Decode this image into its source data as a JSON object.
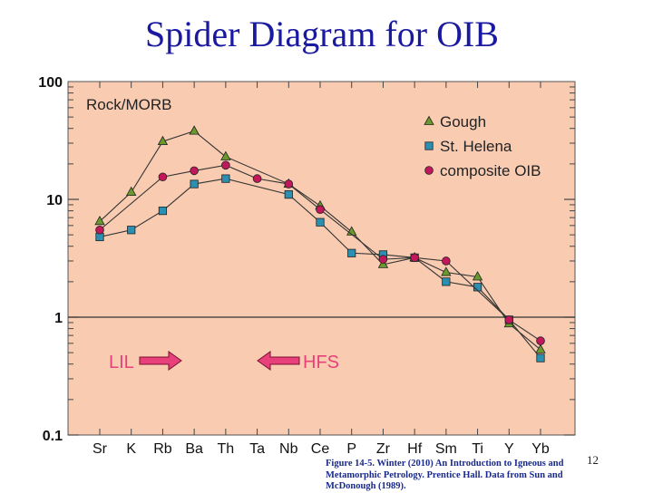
{
  "slide": {
    "title": "Spider Diagram for OIB",
    "caption": "Figure 14-5. Winter (2010) An Introduction to Igneous and Metamorphic Petrology. Prentice Hall. Data from Sun and McDonough (1989).",
    "page_number": "12"
  },
  "chart_data": {
    "type": "line",
    "title": "Rock/MORB",
    "yscale": "log",
    "ylim": [
      0.1,
      100
    ],
    "ytick_labels": [
      "100",
      "10",
      "1",
      "0.1"
    ],
    "categories": [
      "Sr",
      "K",
      "Rb",
      "Ba",
      "Th",
      "Ta",
      "Nb",
      "Ce",
      "P",
      "Zr",
      "Hf",
      "Sm",
      "Ti",
      "Y",
      "Yb"
    ],
    "series": [
      {
        "name": "Gough",
        "marker": "triangle",
        "color": "#6a9a2e",
        "values": [
          6.5,
          11.5,
          31,
          38,
          23,
          null,
          13.5,
          8.8,
          5.3,
          2.8,
          3.2,
          2.4,
          2.2,
          0.88,
          0.53
        ]
      },
      {
        "name": "St. Helena",
        "marker": "square",
        "color": "#2a8fb0",
        "values": [
          4.8,
          5.5,
          8.0,
          13.5,
          15,
          null,
          11,
          6.4,
          3.5,
          3.4,
          3.2,
          2.0,
          1.8,
          0.95,
          0.45
        ]
      },
      {
        "name": "composite OIB",
        "marker": "circle",
        "color": "#c2185b",
        "values": [
          5.5,
          null,
          15.5,
          17.5,
          19.5,
          15,
          13.5,
          8.2,
          null,
          3.1,
          3.2,
          3.0,
          null,
          0.95,
          0.63
        ]
      }
    ],
    "annotations": {
      "lil": "LIL",
      "hfs": "HFS"
    },
    "colors": {
      "background": "#f9ccb2",
      "arrow": "#e8407a",
      "label_text": "#e8407a"
    }
  }
}
